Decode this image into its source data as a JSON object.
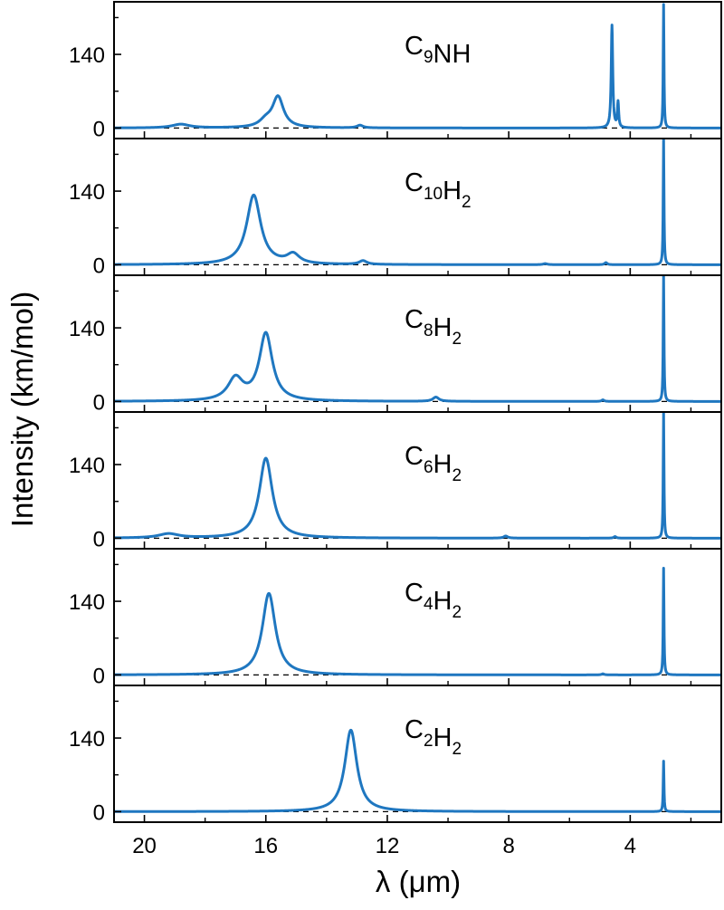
{
  "chart_data": {
    "type": "line",
    "title": "",
    "xlabel": "λ (μm)",
    "ylabel": "Intensity (km/mol)",
    "xlim": [
      21,
      1
    ],
    "x_reversed": true,
    "ylim": [
      -20,
      240
    ],
    "x_ticks": [
      20,
      16,
      12,
      8,
      4
    ],
    "y_ticks": [
      0,
      140
    ],
    "baseline": 0,
    "color": "#1f77c0",
    "panels": [
      {
        "molecule": "C9NH",
        "label_main": [
          "C",
          "NH"
        ],
        "label_sub": [
          "9",
          ""
        ],
        "peaks": [
          {
            "x": 18.8,
            "h": 7,
            "w": 0.35
          },
          {
            "x": 16.0,
            "h": 12,
            "w": 0.25
          },
          {
            "x": 15.6,
            "h": 58,
            "w": 0.22
          },
          {
            "x": 12.9,
            "h": 5,
            "w": 0.12
          },
          {
            "x": 4.6,
            "h": 195,
            "w": 0.03
          },
          {
            "x": 4.4,
            "h": 48,
            "w": 0.025
          },
          {
            "x": 2.9,
            "h": 235,
            "w": 0.015
          }
        ]
      },
      {
        "molecule": "C10H2",
        "label_main": [
          "C",
          "H"
        ],
        "label_sub": [
          "10",
          "2"
        ],
        "peaks": [
          {
            "x": 16.4,
            "h": 132,
            "w": 0.28
          },
          {
            "x": 15.1,
            "h": 18,
            "w": 0.25
          },
          {
            "x": 12.8,
            "h": 7,
            "w": 0.15
          },
          {
            "x": 6.8,
            "h": 2,
            "w": 0.08
          },
          {
            "x": 4.8,
            "h": 4,
            "w": 0.05
          },
          {
            "x": 2.9,
            "h": 240,
            "w": 0.015
          }
        ]
      },
      {
        "molecule": "C8H2",
        "label_main": [
          "C",
          "H"
        ],
        "label_sub": [
          "8",
          "2"
        ],
        "peaks": [
          {
            "x": 17.0,
            "h": 42,
            "w": 0.3
          },
          {
            "x": 16.0,
            "h": 128,
            "w": 0.26
          },
          {
            "x": 10.4,
            "h": 8,
            "w": 0.12
          },
          {
            "x": 4.9,
            "h": 3,
            "w": 0.05
          },
          {
            "x": 2.9,
            "h": 240,
            "w": 0.015
          }
        ]
      },
      {
        "molecule": "C6H2",
        "label_main": [
          "C",
          "H"
        ],
        "label_sub": [
          "6",
          "2"
        ],
        "peaks": [
          {
            "x": 19.2,
            "h": 8,
            "w": 0.4
          },
          {
            "x": 16.0,
            "h": 152,
            "w": 0.26
          },
          {
            "x": 8.1,
            "h": 4,
            "w": 0.08
          },
          {
            "x": 4.5,
            "h": 3,
            "w": 0.05
          },
          {
            "x": 2.9,
            "h": 240,
            "w": 0.015
          }
        ]
      },
      {
        "molecule": "C4H2",
        "label_main": [
          "C",
          "H"
        ],
        "label_sub": [
          "4",
          "2"
        ],
        "peaks": [
          {
            "x": 15.9,
            "h": 155,
            "w": 0.26
          },
          {
            "x": 4.9,
            "h": 2,
            "w": 0.05
          },
          {
            "x": 2.9,
            "h": 203,
            "w": 0.015
          }
        ]
      },
      {
        "molecule": "C2H2",
        "label_main": [
          "C",
          "H"
        ],
        "label_sub": [
          "2",
          "2"
        ],
        "peaks": [
          {
            "x": 13.2,
            "h": 155,
            "w": 0.24
          },
          {
            "x": 2.9,
            "h": 96,
            "w": 0.015
          }
        ]
      }
    ]
  }
}
